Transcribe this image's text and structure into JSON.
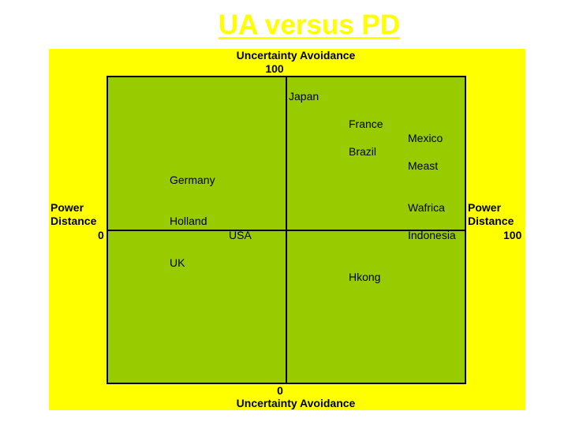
{
  "title": "UA versus PD",
  "axes": {
    "top_label": "Uncertainty Avoidance",
    "top_value": "100",
    "bottom_value": "0",
    "bottom_label": "Uncertainty Avoidance",
    "left_label_1": "Power",
    "left_label_2": "Distance",
    "left_value": "0",
    "right_label_1": "Power",
    "right_label_2": "Distance",
    "right_value": "100"
  },
  "countries": [
    "Japan",
    "France",
    "Mexico",
    "Brazil",
    "Meast",
    "Germany",
    "Wafrica",
    "Holland",
    "USA",
    "Indonesia",
    "UK",
    "Hkong"
  ],
  "colors": {
    "title": "#ffff00",
    "panel": "#ffff00",
    "plot": "#99cc00"
  }
}
